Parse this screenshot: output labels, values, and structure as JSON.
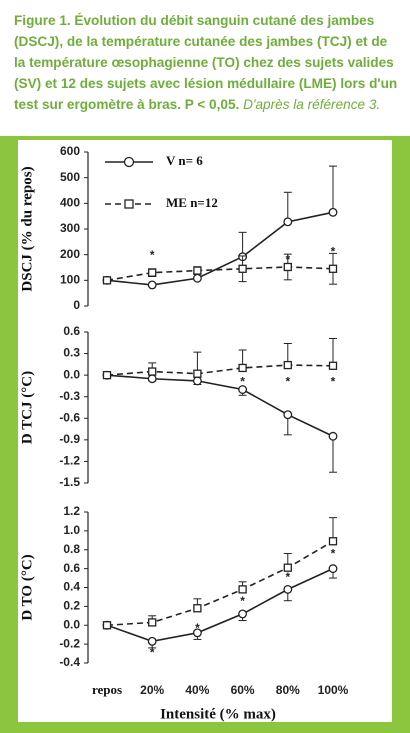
{
  "caption": {
    "text": "Figure 1. Évolution du débit sanguin cutané des jambes (DSCJ), de la température cutanée des jambes (TCJ) et de la température œsophagienne (TO) chez des sujets valides (SV) et 12 des sujets avec lésion médullaire (LME) lors d'un test sur ergomètre à bras. P < 0,05.",
    "source": "D'après la référence 3."
  },
  "chart_data": [
    {
      "type": "line",
      "ylabel": "DSCJ (% du repos)",
      "categories": [
        null,
        null,
        null,
        null,
        null,
        null
      ],
      "ylim": [
        0,
        600
      ],
      "yticks": [
        0,
        100,
        200,
        300,
        400,
        500,
        600
      ],
      "series": [
        {
          "name": "V n= 6",
          "marker": "circle",
          "dashed": false,
          "error_direction": "up",
          "values": [
            100,
            82,
            108,
            192,
            328,
            365
          ],
          "errors": [
            0,
            0,
            20,
            95,
            115,
            180
          ]
        },
        {
          "name": "ME n=12",
          "marker": "square",
          "dashed": true,
          "error_direction": "both",
          "values": [
            100,
            130,
            138,
            145,
            152,
            145
          ],
          "errors": [
            0,
            15,
            15,
            50,
            50,
            60
          ]
        }
      ],
      "annotations": [
        {
          "text": "*",
          "category": 1,
          "y": 195
        },
        {
          "text": "*",
          "category": 4,
          "y": 178
        },
        {
          "text": "*",
          "category": 5,
          "y": 210
        }
      ]
    },
    {
      "type": "line",
      "ylabel": "D TCJ (°C)",
      "categories": [
        null,
        null,
        null,
        null,
        null,
        null
      ],
      "ylim": [
        -1.5,
        0.6
      ],
      "yticks": [
        -1.5,
        -1.2,
        -0.9,
        -0.6,
        -0.3,
        {
          "value": 0,
          "label": "0.0"
        },
        0.3,
        0.6
      ],
      "series": [
        {
          "marker": "circle",
          "dashed": false,
          "error_direction": "down",
          "values": [
            0,
            -0.05,
            -0.08,
            -0.2,
            -0.55,
            -0.85
          ],
          "errors": [
            0,
            0.03,
            0.05,
            0.08,
            0.28,
            0.5
          ]
        },
        {
          "marker": "square",
          "dashed": true,
          "error_direction": "up",
          "values": [
            0,
            0.05,
            0.02,
            0.1,
            0.14,
            0.13
          ],
          "errors": [
            0,
            0.12,
            0.3,
            0.25,
            0.3,
            0.38
          ]
        }
      ],
      "annotations": [
        {
          "text": "*",
          "category": 3,
          "y": -0.1
        },
        {
          "text": "*",
          "category": 4,
          "y": -0.1
        },
        {
          "text": "*",
          "category": 5,
          "y": -0.1
        }
      ]
    },
    {
      "type": "line",
      "ylabel": "D TO (°C)",
      "xlabel": "Intensité (% max)",
      "categories": [
        "repos",
        "20%",
        "40%",
        "60%",
        "80%",
        "100%"
      ],
      "ylim": [
        -0.4,
        1.2
      ],
      "yticks": [
        -0.4,
        -0.2,
        {
          "value": 0,
          "label": "0.0"
        },
        0.2,
        0.4,
        0.6,
        0.8,
        {
          "value": 1,
          "label": "1.0"
        },
        1.2
      ],
      "series": [
        {
          "marker": "circle",
          "dashed": false,
          "error_direction": "down",
          "values": [
            0,
            -0.17,
            -0.08,
            0.12,
            0.38,
            0.6
          ],
          "errors": [
            0,
            0.07,
            0.07,
            0.07,
            0.12,
            0.1
          ]
        },
        {
          "marker": "square",
          "dashed": true,
          "error_direction": "up",
          "values": [
            0,
            0.03,
            0.18,
            0.38,
            0.61,
            0.89
          ],
          "errors": [
            0,
            0.07,
            0.1,
            0.08,
            0.15,
            0.25
          ]
        }
      ],
      "annotations": [
        {
          "text": "*",
          "category": 1,
          "y": -0.3
        },
        {
          "text": "*",
          "category": 2,
          "y": -0.04
        },
        {
          "text": "*",
          "category": 3,
          "y": 0.25
        },
        {
          "text": "*",
          "category": 4,
          "y": 0.5
        },
        {
          "text": "*",
          "category": 5,
          "y": 0.75
        }
      ]
    }
  ]
}
